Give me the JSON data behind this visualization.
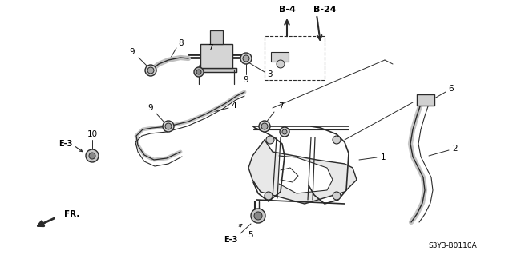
{
  "bg_color": "#ffffff",
  "line_color": "#2a2a2a",
  "label_color": "#000000",
  "fig_width": 6.4,
  "fig_height": 3.19,
  "dpi": 100,
  "diagram_code": "S3Y3-B0110A"
}
